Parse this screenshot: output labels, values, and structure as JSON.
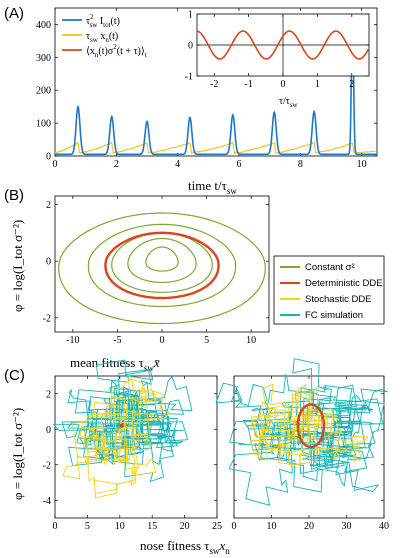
{
  "colors": {
    "blue": "#1f77c4",
    "orange": "#f0c020",
    "red": "#d9451b",
    "green": "#7aab2f",
    "yellow": "#f2d21b",
    "teal": "#18b3b8"
  },
  "panels": {
    "a": "(A)",
    "b": "(B)",
    "c": "(C)"
  },
  "chart_data": [
    {
      "type": "line",
      "panel": "A",
      "xlabel": "time t/τ_sw",
      "xlabel_main": "time t/τ",
      "xlabel_sub": "sw",
      "xlim": [
        0,
        10.5
      ],
      "ylim": [
        0,
        450
      ],
      "xticks": [
        "0",
        "2",
        "4",
        "6",
        "8",
        "10"
      ],
      "yticks": [
        "0",
        "100",
        "200",
        "300",
        "400"
      ],
      "series": [
        {
          "name": "τ_sw² I_tot(t)",
          "color": "#1f77c4",
          "peaks": [
            [
              0.75,
              145
            ],
            [
              1.85,
              115
            ],
            [
              3.0,
              100
            ],
            [
              4.4,
              112
            ],
            [
              5.8,
              120
            ],
            [
              7.15,
              128
            ],
            [
              8.45,
              130
            ],
            [
              9.7,
              418
            ]
          ],
          "baseline": 5
        },
        {
          "name": "τ_sw x_n(t)",
          "color": "#f0c020",
          "pattern": "sawtooth",
          "min": 10,
          "max": 40
        }
      ],
      "legend": {
        "items": [
          {
            "main": "τ",
            "sub": "sw",
            "sup": "2",
            "rest": " I",
            "sub2": "tot",
            "tail": "(t)"
          },
          {
            "main": "τ",
            "sub": "sw",
            "rest": " x",
            "sub2": "n",
            "tail": "(t)"
          },
          {
            "main": "⟨x",
            "sub": "n",
            "rest": "(t)σ",
            "sup": "2",
            "tail": "(t + τ)⟩",
            "sub2": "t"
          }
        ]
      },
      "inset": {
        "type": "line",
        "xlim": [
          -2.5,
          2.5
        ],
        "ylim": [
          -1,
          1
        ],
        "xticks": [
          "-2",
          "-1",
          "0",
          "1",
          "2"
        ],
        "yticks": [
          "-1",
          "0",
          "1"
        ],
        "xlabel": "τ/τ_sw",
        "xlabel_main": "τ/τ",
        "xlabel_sub": "sw",
        "series": [
          {
            "name": "⟨x_n(t)σ²(t+τ)⟩_t",
            "color": "#d9451b",
            "amplitude": 0.45,
            "period": 1.35
          }
        ]
      }
    },
    {
      "type": "line",
      "panel": "B",
      "xlabel": "mean fitness τ_sw x̄",
      "xlabel_main": "mean fitness τ",
      "xlabel_sub": "sw",
      "xlabel_var": "x̄",
      "ylabel": "φ = log(I_tot σ⁻²)",
      "xlim": [
        -12,
        12
      ],
      "ylim": [
        -2.5,
        2.3
      ],
      "xticks": [
        "-10",
        "-5",
        "0",
        "5",
        "10"
      ],
      "yticks": [
        "-2",
        "0",
        "2"
      ],
      "closed_orbits": [
        {
          "series": "Constant σ²",
          "rx": 1.8,
          "ytop": 0.5,
          "ybot": -0.35
        },
        {
          "series": "Constant σ²",
          "rx": 3.8,
          "ytop": 0.8,
          "ybot": -0.75
        },
        {
          "series": "Constant σ²",
          "rx": 5.6,
          "ytop": 1.0,
          "ybot": -1.1
        },
        {
          "series": "Constant σ²",
          "rx": 8.2,
          "ytop": 1.3,
          "ybot": -1.6
        },
        {
          "series": "Constant σ²",
          "rx": 11.5,
          "ytop": 1.7,
          "ybot": -2.2
        },
        {
          "series": "Deterministic DDE",
          "rx": 6.3,
          "ytop": 1.0,
          "ybot": -1.3
        }
      ],
      "legend": [
        "Constant σ²",
        "Deterministic DDE",
        "Stochastic DDE",
        "FC simulation"
      ]
    },
    {
      "type": "line",
      "panel": "C-left",
      "ylabel": "φ = log(I_tot σ⁻²)",
      "xlim": [
        0,
        25
      ],
      "ylim": [
        -5,
        3
      ],
      "xticks": [
        "0",
        "5",
        "10",
        "15",
        "20",
        "25"
      ],
      "yticks": [
        "-4",
        "-2",
        "0",
        "2"
      ],
      "series": [
        {
          "name": "FC simulation",
          "color": "#18b3b8",
          "center": [
            10,
            0.2
          ]
        },
        {
          "name": "Stochastic DDE",
          "color": "#f2d21b",
          "center": [
            9,
            -0.5
          ]
        },
        {
          "name": "Deterministic DDE",
          "color": "#d9451b",
          "point": [
            10.3,
            0.2
          ]
        }
      ]
    },
    {
      "type": "line",
      "panel": "C-right",
      "xlabel": "nose fitness τ_sw x_n",
      "xlabel_main": "nose fitness τ",
      "xlabel_sub": "sw",
      "xlabel_var": "x",
      "xlabel_var_sub": "n",
      "xlim": [
        0,
        40
      ],
      "ylim": [
        -5,
        3
      ],
      "xticks": [
        "0",
        "10",
        "20",
        "30",
        "40"
      ],
      "series": [
        {
          "name": "FC simulation",
          "color": "#18b3b8",
          "center": [
            20,
            0.5
          ]
        },
        {
          "name": "Stochastic DDE",
          "color": "#f2d21b",
          "center": [
            19,
            -0.5
          ]
        },
        {
          "name": "Deterministic DDE",
          "color": "#d9451b",
          "loop": {
            "cx": 20.5,
            "rx": 3.5,
            "ytop": 1.4,
            "ybot": -1.0
          }
        }
      ]
    }
  ]
}
